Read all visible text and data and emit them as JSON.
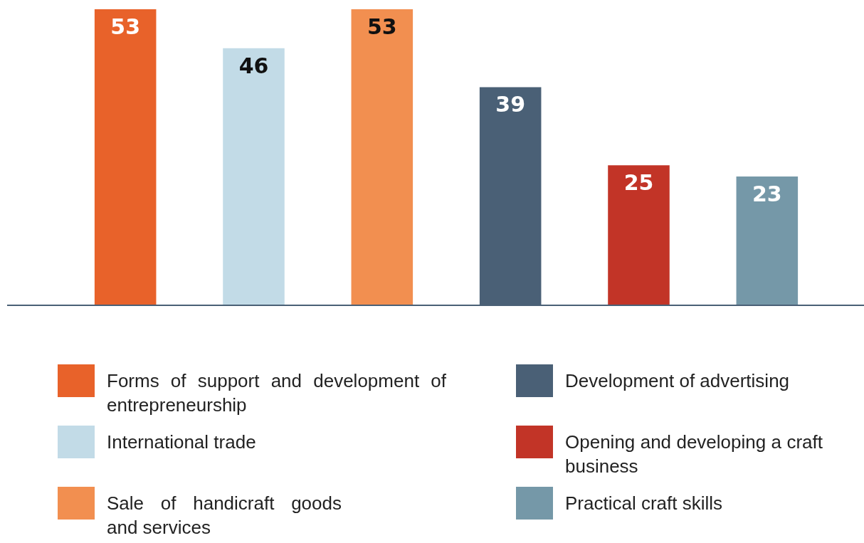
{
  "chart_data": {
    "type": "bar",
    "categories": [
      null,
      null,
      null,
      null,
      null,
      null
    ],
    "series": [
      {
        "name": "Forms of support and development of entrepreneurship",
        "color": "#e8622a",
        "values": [
          53,
          null,
          null,
          null,
          null,
          null
        ]
      },
      {
        "name": "International trade",
        "color": "#c2dbe7",
        "values": [
          null,
          46,
          null,
          null,
          null,
          null
        ]
      },
      {
        "name": "Sale of handicraft goods and services",
        "color": "#f28f50",
        "values": [
          null,
          null,
          53,
          null,
          null,
          null
        ]
      },
      {
        "name": "Development of advertising",
        "color": "#4a6076",
        "values": [
          null,
          null,
          null,
          39,
          null,
          null
        ]
      },
      {
        "name": "Opening and developing a craft business",
        "color": "#c23427",
        "values": [
          null,
          null,
          null,
          null,
          25,
          null
        ]
      },
      {
        "name": "Practical craft skills",
        "color": "#7598a8",
        "values": [
          null,
          null,
          null,
          null,
          null,
          23
        ]
      }
    ],
    "stacked": true,
    "ylim": [
      0,
      53
    ],
    "data_labels": true,
    "tick_labels": false,
    "grid": false,
    "legend": "bottom"
  }
}
